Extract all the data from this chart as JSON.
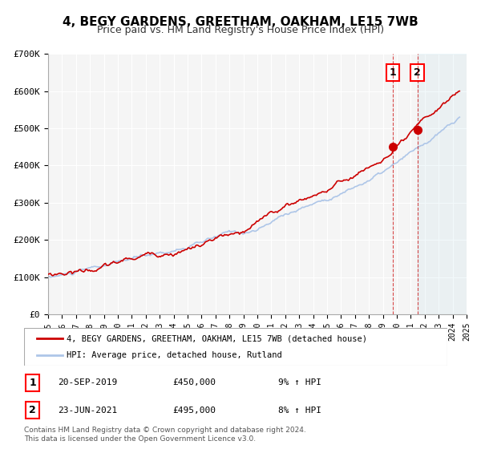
{
  "title": "4, BEGY GARDENS, GREETHAM, OAKHAM, LE15 7WB",
  "subtitle": "Price paid vs. HM Land Registry's House Price Index (HPI)",
  "xlabel": "",
  "ylabel": "",
  "ylim": [
    0,
    700000
  ],
  "xlim_start": 1995.0,
  "xlim_end": 2025.0,
  "yticks": [
    0,
    100000,
    200000,
    300000,
    400000,
    500000,
    600000,
    700000
  ],
  "ytick_labels": [
    "£0",
    "£100K",
    "£200K",
    "£300K",
    "£400K",
    "£500K",
    "£600K",
    "£700K"
  ],
  "xticks": [
    1995,
    1996,
    1997,
    1998,
    1999,
    2000,
    2001,
    2002,
    2003,
    2004,
    2005,
    2006,
    2007,
    2008,
    2009,
    2010,
    2011,
    2012,
    2013,
    2014,
    2015,
    2016,
    2017,
    2018,
    2019,
    2020,
    2021,
    2022,
    2023,
    2024,
    2025
  ],
  "hpi_color": "#aec6e8",
  "price_color": "#cc0000",
  "marker1_x": 2019.72,
  "marker1_y": 450000,
  "marker2_x": 2021.47,
  "marker2_y": 495000,
  "vline1_x": 2019.72,
  "vline2_x": 2021.47,
  "legend_price_label": "4, BEGY GARDENS, GREETHAM, OAKHAM, LE15 7WB (detached house)",
  "legend_hpi_label": "HPI: Average price, detached house, Rutland",
  "annotation1_num": "1",
  "annotation2_num": "2",
  "note1_date": "20-SEP-2019",
  "note1_price": "£450,000",
  "note1_hpi": "9% ↑ HPI",
  "note2_date": "23-JUN-2021",
  "note2_price": "£495,000",
  "note2_hpi": "8% ↑ HPI",
  "footer": "Contains HM Land Registry data © Crown copyright and database right 2024.\nThis data is licensed under the Open Government Licence v3.0.",
  "bg_color": "#ffffff",
  "plot_bg_color": "#f5f5f5",
  "hatch_color": "#e0e0e0",
  "grid_color": "#ffffff",
  "title_fontsize": 11,
  "subtitle_fontsize": 9
}
